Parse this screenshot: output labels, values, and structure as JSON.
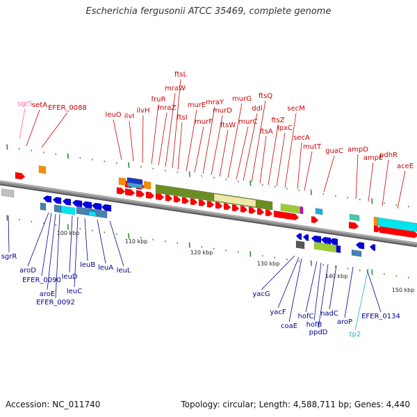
{
  "title": "Escherichia fergusonii ATCC 35469, complete genome",
  "footer": {
    "accession": "Accession: NC_011740",
    "stats": "Topology: circular; Length: 4,588,711 bp; Genes: 4,440"
  },
  "colors": {
    "forward_label": "#cc0000",
    "reverse_label": "#00008b",
    "pink_label": "#ff66aa",
    "cyan_label": "#1ab0cc",
    "forward_gene": "#ff0000",
    "reverse_gene": "#0000dd",
    "backbone": "#8a8a8a",
    "tick": "#2e8b2e"
  },
  "scale_labels": [
    "100 kbp",
    "110 kbp",
    "120 kbp",
    "130 kbp",
    "140 kbp",
    "150 kbp"
  ],
  "top_labels": [
    "sgrS",
    "setA",
    "EFER_0088",
    "leuO",
    "ilvI",
    "ilvH",
    "fruR",
    "mraZ",
    "mraW",
    "ftsL",
    "ftsI",
    "murE",
    "murF",
    "mraY",
    "murD",
    "ftsW",
    "murG",
    "murC",
    "ddl",
    "ftsQ",
    "ftsA",
    "ftsZ",
    "lpxC",
    "secM",
    "secA",
    "mutT",
    "guaC",
    "ampD",
    "ampE",
    "pdhR",
    "aceE"
  ],
  "bottom_labels": [
    "sgrR",
    "aroD",
    "EFER_0090",
    "aroE",
    "EFER_0092",
    "leuD",
    "leuC",
    "leuB",
    "leuA",
    "leuL",
    "yacG",
    "yacF",
    "coaE",
    "hofC",
    "hofB",
    "ppdD",
    "nadC",
    "aroP",
    "tp2",
    "EFER_0134"
  ]
}
